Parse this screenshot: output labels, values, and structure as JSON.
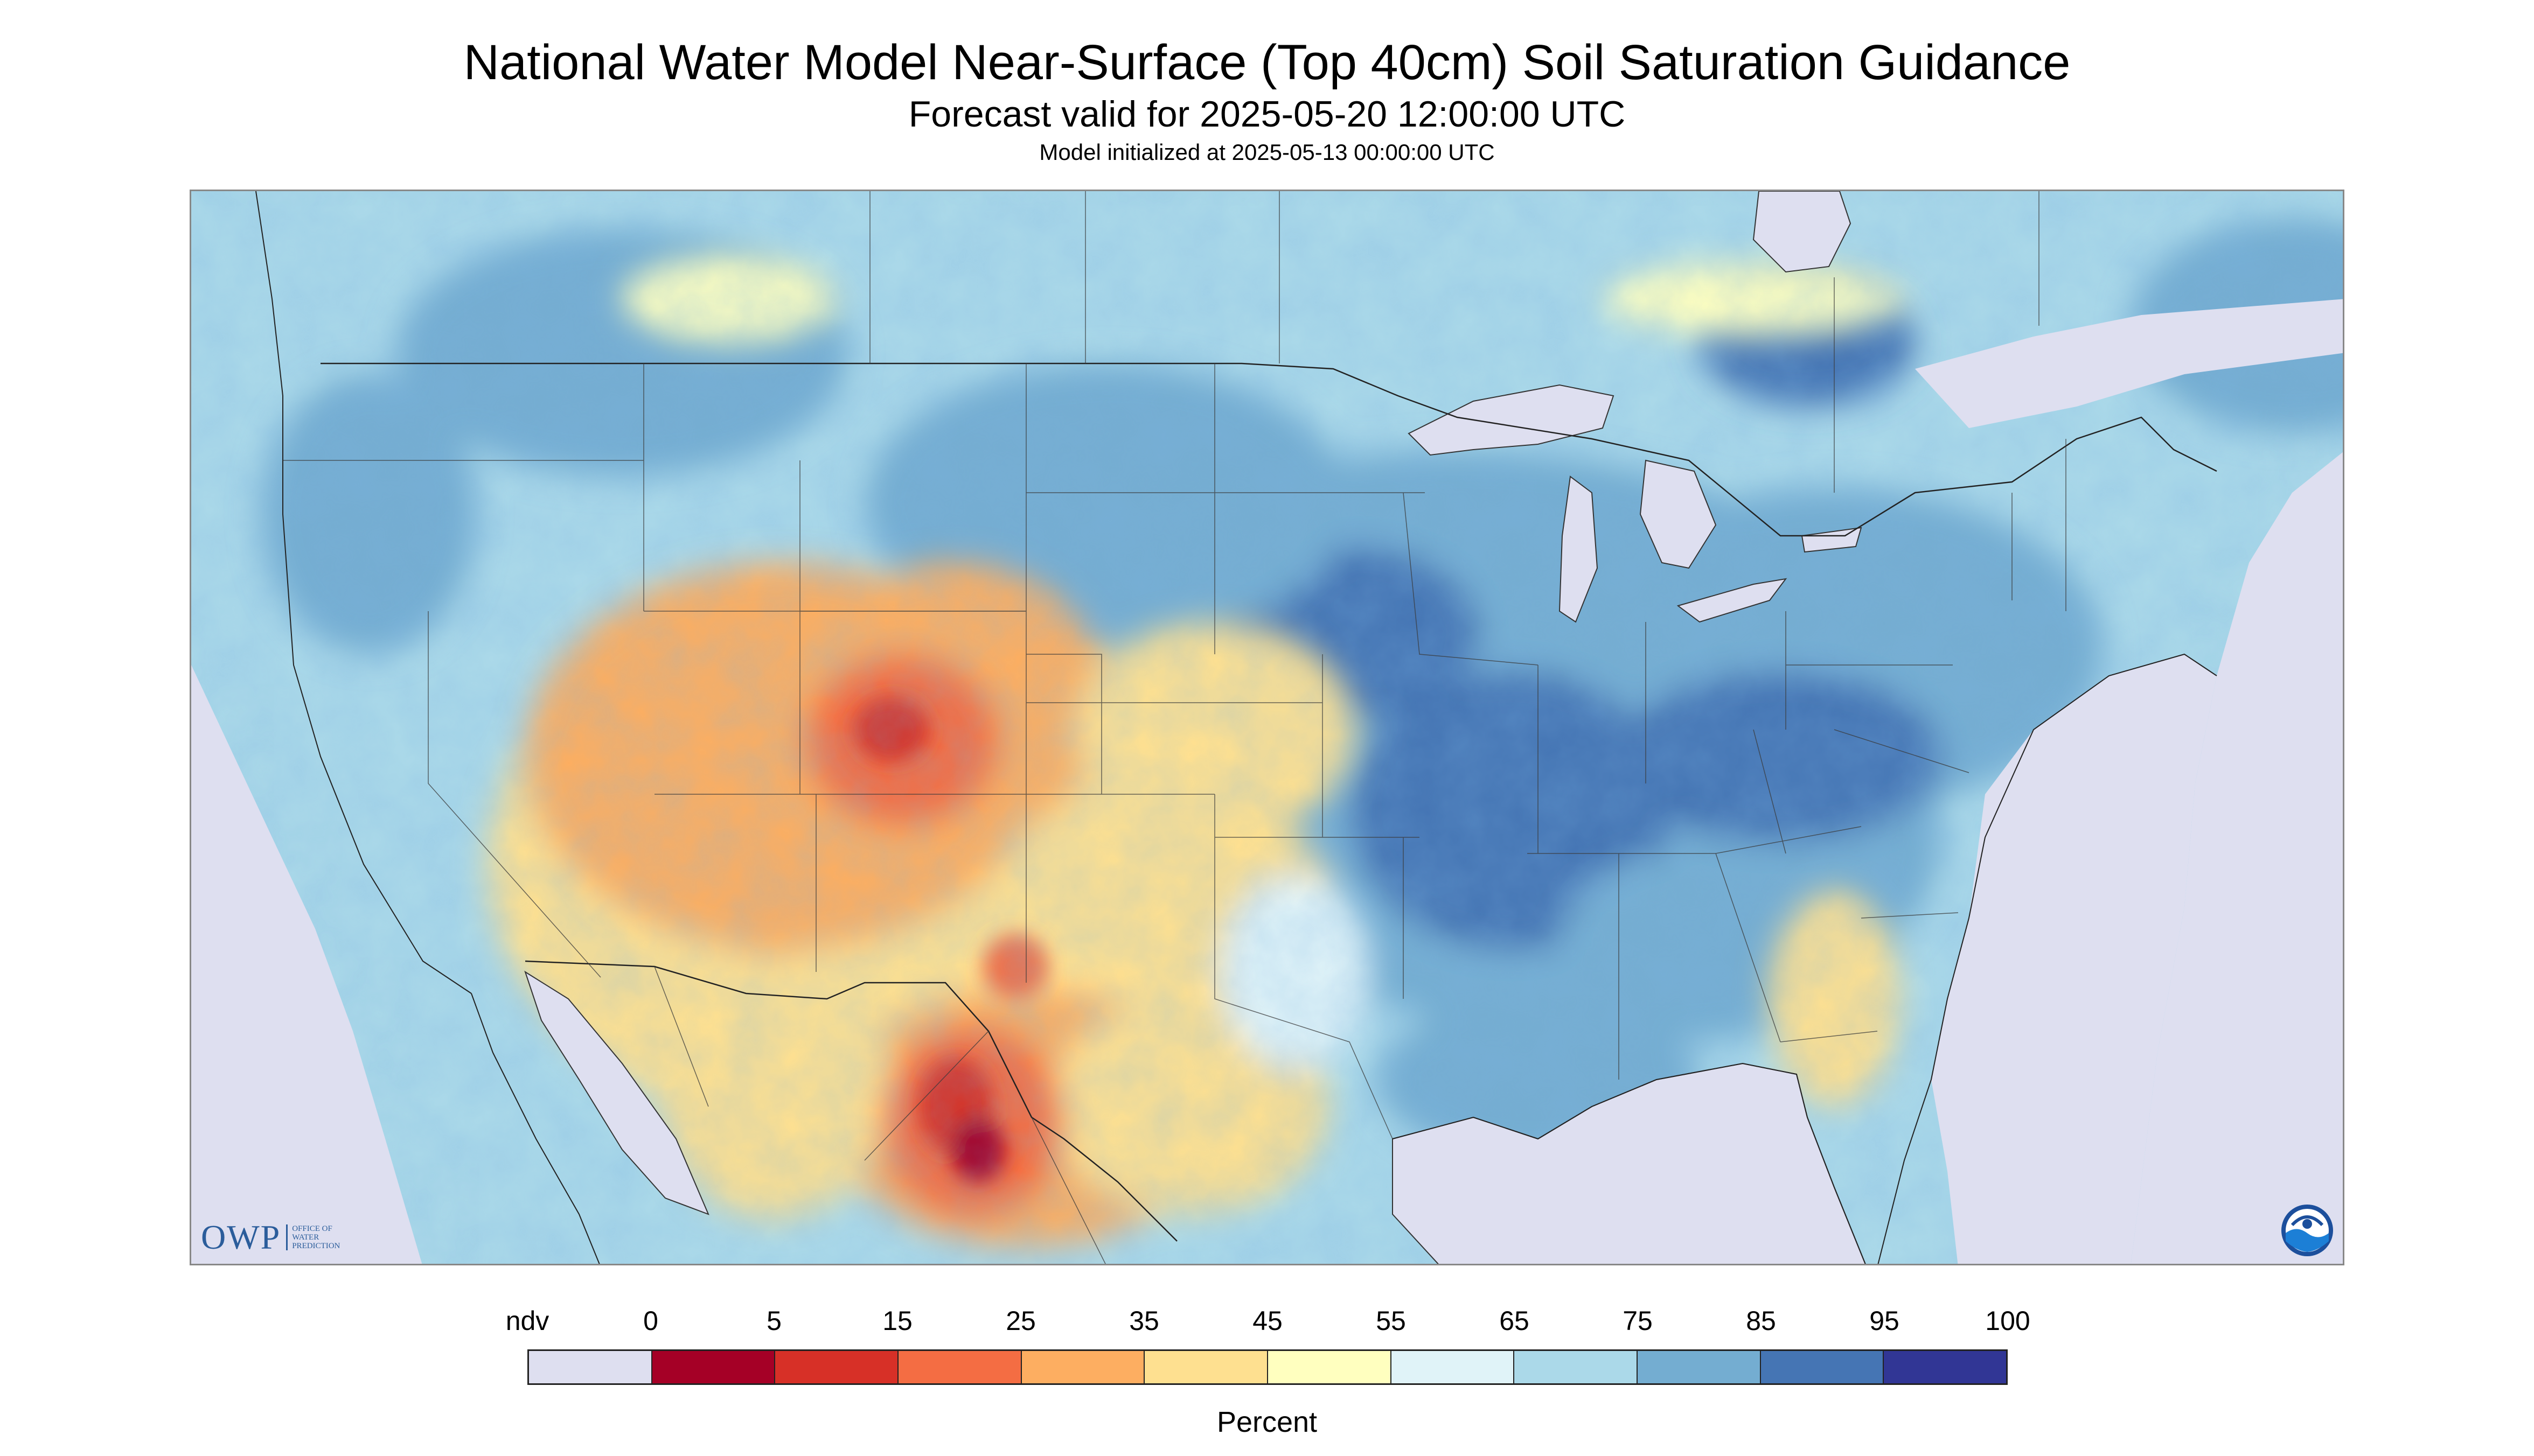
{
  "header": {
    "title": "National Water Model Near-Surface (Top 40cm) Soil Saturation Guidance",
    "subtitle": "Forecast valid for 2025-05-20 12:00:00 UTC",
    "init_line": "Model initialized at 2025-05-13 00:00:00 UTC"
  },
  "map": {
    "projection": "Lambert conformal",
    "region": "Contiguous United States with parts of Canada and Mexico",
    "background_color": "#dedff0",
    "water_color": "#dedff0",
    "border_color": "#3a3a3a"
  },
  "logos": {
    "owp_mark": "OWP",
    "owp_text": "OFFICE OF\nWATER\nPREDICTION",
    "noaa_icon": "noaa-logo"
  },
  "legend": {
    "unit_label": "Percent",
    "labels": [
      "ndv",
      "0",
      "5",
      "15",
      "25",
      "35",
      "45",
      "55",
      "65",
      "75",
      "85",
      "95",
      "100"
    ],
    "colors": [
      "#dedff0",
      "#a50026",
      "#d73027",
      "#f46d43",
      "#fdae61",
      "#fee090",
      "#ffffbf",
      "#e0f3f8",
      "#abd9e9",
      "#74add1",
      "#4575b4",
      "#313695"
    ]
  }
}
